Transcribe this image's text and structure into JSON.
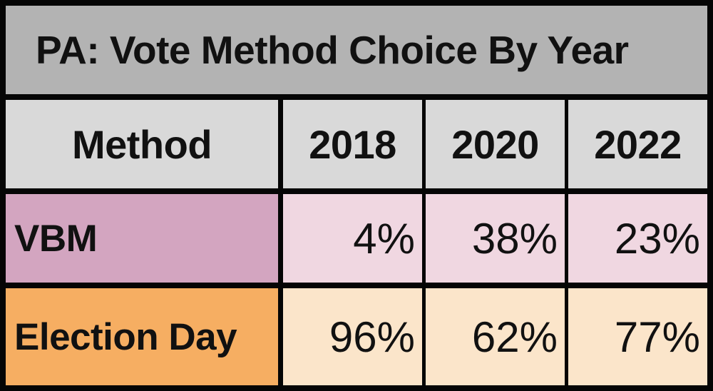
{
  "title": "PA: Vote Method Choice By Year",
  "table": {
    "header": {
      "method_label": "Method",
      "years": [
        "2018",
        "2020",
        "2022"
      ]
    },
    "rows": [
      {
        "label": "VBM",
        "values": [
          "4%",
          "38%",
          "23%"
        ]
      },
      {
        "label": "Election Day",
        "values": [
          "96%",
          "62%",
          "77%"
        ]
      }
    ]
  },
  "colors": {
    "border": "#050505",
    "title_bg": "#b3b3b3",
    "header_bg": "#d9d9d9",
    "vbm_label_bg": "#d3a5c0",
    "vbm_data_bg": "#f0d7e1",
    "election_day_label_bg": "#f6ae62",
    "election_day_data_bg": "#fbe5ca",
    "text": "#111111"
  },
  "chart_data": {
    "type": "table",
    "title": "PA: Vote Method Choice By Year",
    "columns": [
      "Method",
      "2018",
      "2020",
      "2022"
    ],
    "rows": [
      {
        "method": "VBM",
        "2018": 4,
        "2020": 38,
        "2022": 23
      },
      {
        "method": "Election Day",
        "2018": 96,
        "2020": 62,
        "2022": 77
      }
    ],
    "units": "percent"
  }
}
